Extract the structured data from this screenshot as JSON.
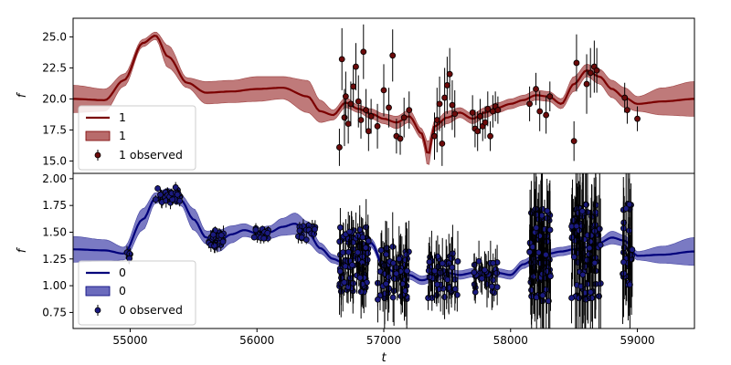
{
  "chart_data": [
    {
      "type": "line",
      "panel": "top",
      "xlabel": "",
      "ylabel": "f",
      "xlim": [
        54550,
        59450
      ],
      "ylim": [
        14.0,
        26.5
      ],
      "yticks": [
        15.0,
        17.5,
        20.0,
        22.5,
        25.0
      ],
      "ytick_labels": [
        "15.0",
        "17.5",
        "20.0",
        "22.5",
        "25.0"
      ],
      "colors": {
        "line": "#7b0000",
        "band": "#b86b6b",
        "points": "#6b0a0a"
      },
      "legend_position": "lower-left",
      "legend": [
        "1",
        "1",
        "1 observed"
      ],
      "series": [
        {
          "name": "1",
          "kind": "model-line"
        },
        {
          "name": "1",
          "kind": "confidence-band"
        },
        {
          "name": "1 observed",
          "kind": "observed-with-errors"
        }
      ],
      "model": {
        "x": [
          54550,
          54800,
          54950,
          55100,
          55200,
          55300,
          55450,
          55600,
          55800,
          56000,
          56200,
          56400,
          56500,
          56600,
          56700,
          56800,
          56900,
          57000,
          57100,
          57200,
          57300,
          57350,
          57400,
          57500,
          57600,
          57700,
          57800,
          57900,
          58000,
          58100,
          58200,
          58300,
          58400,
          58500,
          58600,
          58700,
          58800,
          58900,
          59000,
          59200,
          59450
        ],
        "y": [
          20.0,
          19.9,
          21.5,
          24.5,
          25.1,
          23.4,
          21.3,
          20.5,
          20.6,
          20.8,
          20.9,
          20.2,
          19.0,
          18.7,
          19.7,
          19.2,
          18.8,
          18.4,
          18.1,
          18.6,
          17.2,
          15.5,
          17.8,
          18.5,
          18.9,
          18.4,
          18.9,
          19.3,
          19.6,
          19.9,
          20.3,
          20.2,
          19.6,
          21.2,
          22.3,
          21.8,
          20.8,
          20.1,
          19.6,
          19.8,
          20.0
        ],
        "band": [
          1.1,
          0.9,
          0.5,
          0.3,
          0.3,
          0.9,
          0.4,
          0.9,
          0.9,
          1.0,
          0.9,
          1.3,
          0.9,
          0.4,
          0.4,
          0.3,
          0.4,
          0.4,
          0.5,
          0.5,
          0.4,
          1.0,
          0.4,
          0.5,
          0.4,
          0.4,
          0.4,
          0.4,
          0.4,
          0.4,
          0.4,
          0.4,
          0.4,
          0.6,
          0.5,
          0.6,
          0.7,
          0.8,
          0.6,
          1.1,
          1.4
        ]
      },
      "observed": {
        "x": [
          56650,
          56670,
          56690,
          56700,
          56720,
          56740,
          56760,
          56780,
          56800,
          56820,
          56840,
          56860,
          56880,
          56900,
          56950,
          57000,
          57040,
          57070,
          57100,
          57130,
          57160,
          57200,
          57400,
          57420,
          57440,
          57460,
          57480,
          57500,
          57520,
          57540,
          57560,
          57700,
          57720,
          57740,
          57760,
          57780,
          57800,
          57820,
          57840,
          57860,
          57880,
          57900,
          58150,
          58200,
          58230,
          58280,
          58310,
          58500,
          58520,
          58600,
          58630,
          58660,
          58680,
          58900,
          58920,
          59000
        ],
        "y": [
          16.1,
          23.2,
          18.5,
          20.2,
          18.0,
          19.6,
          21.0,
          22.6,
          19.8,
          18.3,
          23.8,
          19.1,
          17.4,
          18.6,
          17.8,
          20.7,
          19.3,
          23.5,
          17.0,
          16.8,
          18.5,
          19.1,
          17.0,
          18.3,
          19.6,
          16.4,
          20.1,
          21.1,
          22.0,
          19.5,
          18.8,
          18.9,
          17.6,
          17.4,
          18.6,
          17.8,
          18.1,
          19.2,
          17.0,
          19.0,
          19.4,
          19.1,
          19.6,
          20.8,
          19.0,
          18.7,
          20.2,
          16.6,
          22.9,
          21.2,
          22.1,
          22.6,
          22.3,
          20.1,
          19.1,
          18.4
        ],
        "err": [
          1.5,
          2.5,
          2.3,
          2.0,
          1.6,
          1.8,
          1.7,
          1.9,
          2.1,
          1.5,
          2.2,
          1.7,
          1.6,
          1.4,
          1.8,
          2.1,
          1.6,
          2.1,
          1.4,
          1.3,
          1.6,
          1.5,
          1.9,
          2.6,
          2.2,
          1.8,
          2.4,
          2.3,
          2.1,
          2.0,
          1.9,
          1.4,
          1.5,
          1.6,
          1.4,
          1.2,
          1.3,
          1.4,
          1.2,
          1.3,
          1.2,
          1.1,
          1.4,
          1.3,
          1.6,
          1.5,
          1.2,
          1.6,
          2.3,
          2.4,
          2.0,
          2.1,
          1.8,
          1.2,
          1.1,
          1.0
        ]
      }
    },
    {
      "type": "line",
      "panel": "bottom",
      "xlabel": "t",
      "ylabel": "f",
      "xlim": [
        54550,
        59450
      ],
      "ylim": [
        0.6,
        2.05
      ],
      "xticks": [
        55000,
        56000,
        57000,
        58000,
        59000
      ],
      "xtick_labels": [
        "55000",
        "56000",
        "57000",
        "58000",
        "59000"
      ],
      "yticks": [
        0.75,
        1.0,
        1.25,
        1.5,
        1.75,
        2.0
      ],
      "ytick_labels": [
        "0.75",
        "1.00",
        "1.25",
        "1.50",
        "1.75",
        "2.00"
      ],
      "colors": {
        "line": "#00007b",
        "band": "#6b6bbd",
        "points": "#1a1a80"
      },
      "legend_position": "lower-left",
      "legend": [
        "0",
        "0",
        "0 observed"
      ],
      "series": [
        {
          "name": "0",
          "kind": "model-line"
        },
        {
          "name": "0",
          "kind": "confidence-band"
        },
        {
          "name": "0 observed",
          "kind": "observed-with-errors"
        }
      ],
      "model": {
        "x": [
          54550,
          54800,
          54950,
          55100,
          55200,
          55300,
          55400,
          55500,
          55600,
          55700,
          55800,
          55900,
          56000,
          56100,
          56200,
          56300,
          56400,
          56500,
          56600,
          56700,
          56800,
          56900,
          57000,
          57100,
          57200,
          57300,
          57400,
          57500,
          57600,
          57700,
          57800,
          57900,
          58000,
          58100,
          58200,
          58300,
          58400,
          58500,
          58600,
          58700,
          58800,
          58900,
          59000,
          59200,
          59450
        ],
        "y": [
          1.34,
          1.33,
          1.3,
          1.62,
          1.82,
          1.86,
          1.8,
          1.62,
          1.45,
          1.42,
          1.48,
          1.52,
          1.49,
          1.5,
          1.55,
          1.58,
          1.5,
          1.35,
          1.25,
          1.2,
          1.28,
          1.4,
          1.18,
          1.12,
          1.1,
          1.05,
          1.08,
          1.12,
          1.1,
          1.12,
          1.08,
          1.12,
          1.1,
          1.2,
          1.26,
          1.3,
          1.32,
          1.34,
          1.36,
          1.4,
          1.45,
          1.42,
          1.28,
          1.29,
          1.32
        ],
        "band": [
          0.12,
          0.1,
          0.06,
          0.1,
          0.05,
          0.05,
          0.05,
          0.1,
          0.06,
          0.1,
          0.08,
          0.06,
          0.05,
          0.06,
          0.08,
          0.1,
          0.1,
          0.05,
          0.04,
          0.03,
          0.03,
          0.04,
          0.04,
          0.04,
          0.04,
          0.04,
          0.04,
          0.04,
          0.04,
          0.04,
          0.04,
          0.04,
          0.04,
          0.04,
          0.04,
          0.04,
          0.04,
          0.04,
          0.04,
          0.04,
          0.06,
          0.05,
          0.04,
          0.08,
          0.13
        ]
      },
      "observed": {
        "clusters": [
          {
            "x0": 54970,
            "x1": 55000,
            "n": 5,
            "y": 1.28,
            "spread": 0.04,
            "err": 0.05
          },
          {
            "x0": 55200,
            "x1": 55400,
            "n": 30,
            "y": 1.84,
            "spread": 0.08,
            "err": 0.05
          },
          {
            "x0": 55620,
            "x1": 55760,
            "n": 26,
            "y": 1.44,
            "spread": 0.08,
            "err": 0.05
          },
          {
            "x0": 55950,
            "x1": 56090,
            "n": 22,
            "y": 1.49,
            "spread": 0.05,
            "err": 0.04
          },
          {
            "x0": 56320,
            "x1": 56460,
            "n": 18,
            "y": 1.5,
            "spread": 0.08,
            "err": 0.05
          },
          {
            "x0": 56650,
            "x1": 56880,
            "n": 90,
            "y": 1.25,
            "spread": 0.32,
            "err": 0.18
          },
          {
            "x0": 56950,
            "x1": 57200,
            "n": 55,
            "y": 1.12,
            "spread": 0.25,
            "err": 0.22
          },
          {
            "x0": 57350,
            "x1": 57600,
            "n": 45,
            "y": 1.1,
            "spread": 0.22,
            "err": 0.2
          },
          {
            "x0": 57700,
            "x1": 57900,
            "n": 30,
            "y": 1.08,
            "spread": 0.15,
            "err": 0.15
          },
          {
            "x0": 58150,
            "x1": 58320,
            "n": 85,
            "y": 1.3,
            "spread": 0.45,
            "err": 0.35
          },
          {
            "x0": 58480,
            "x1": 58710,
            "n": 95,
            "y": 1.32,
            "spread": 0.45,
            "err": 0.35
          },
          {
            "x0": 58880,
            "x1": 58960,
            "n": 30,
            "y": 1.4,
            "spread": 0.4,
            "err": 0.35
          }
        ]
      }
    }
  ]
}
